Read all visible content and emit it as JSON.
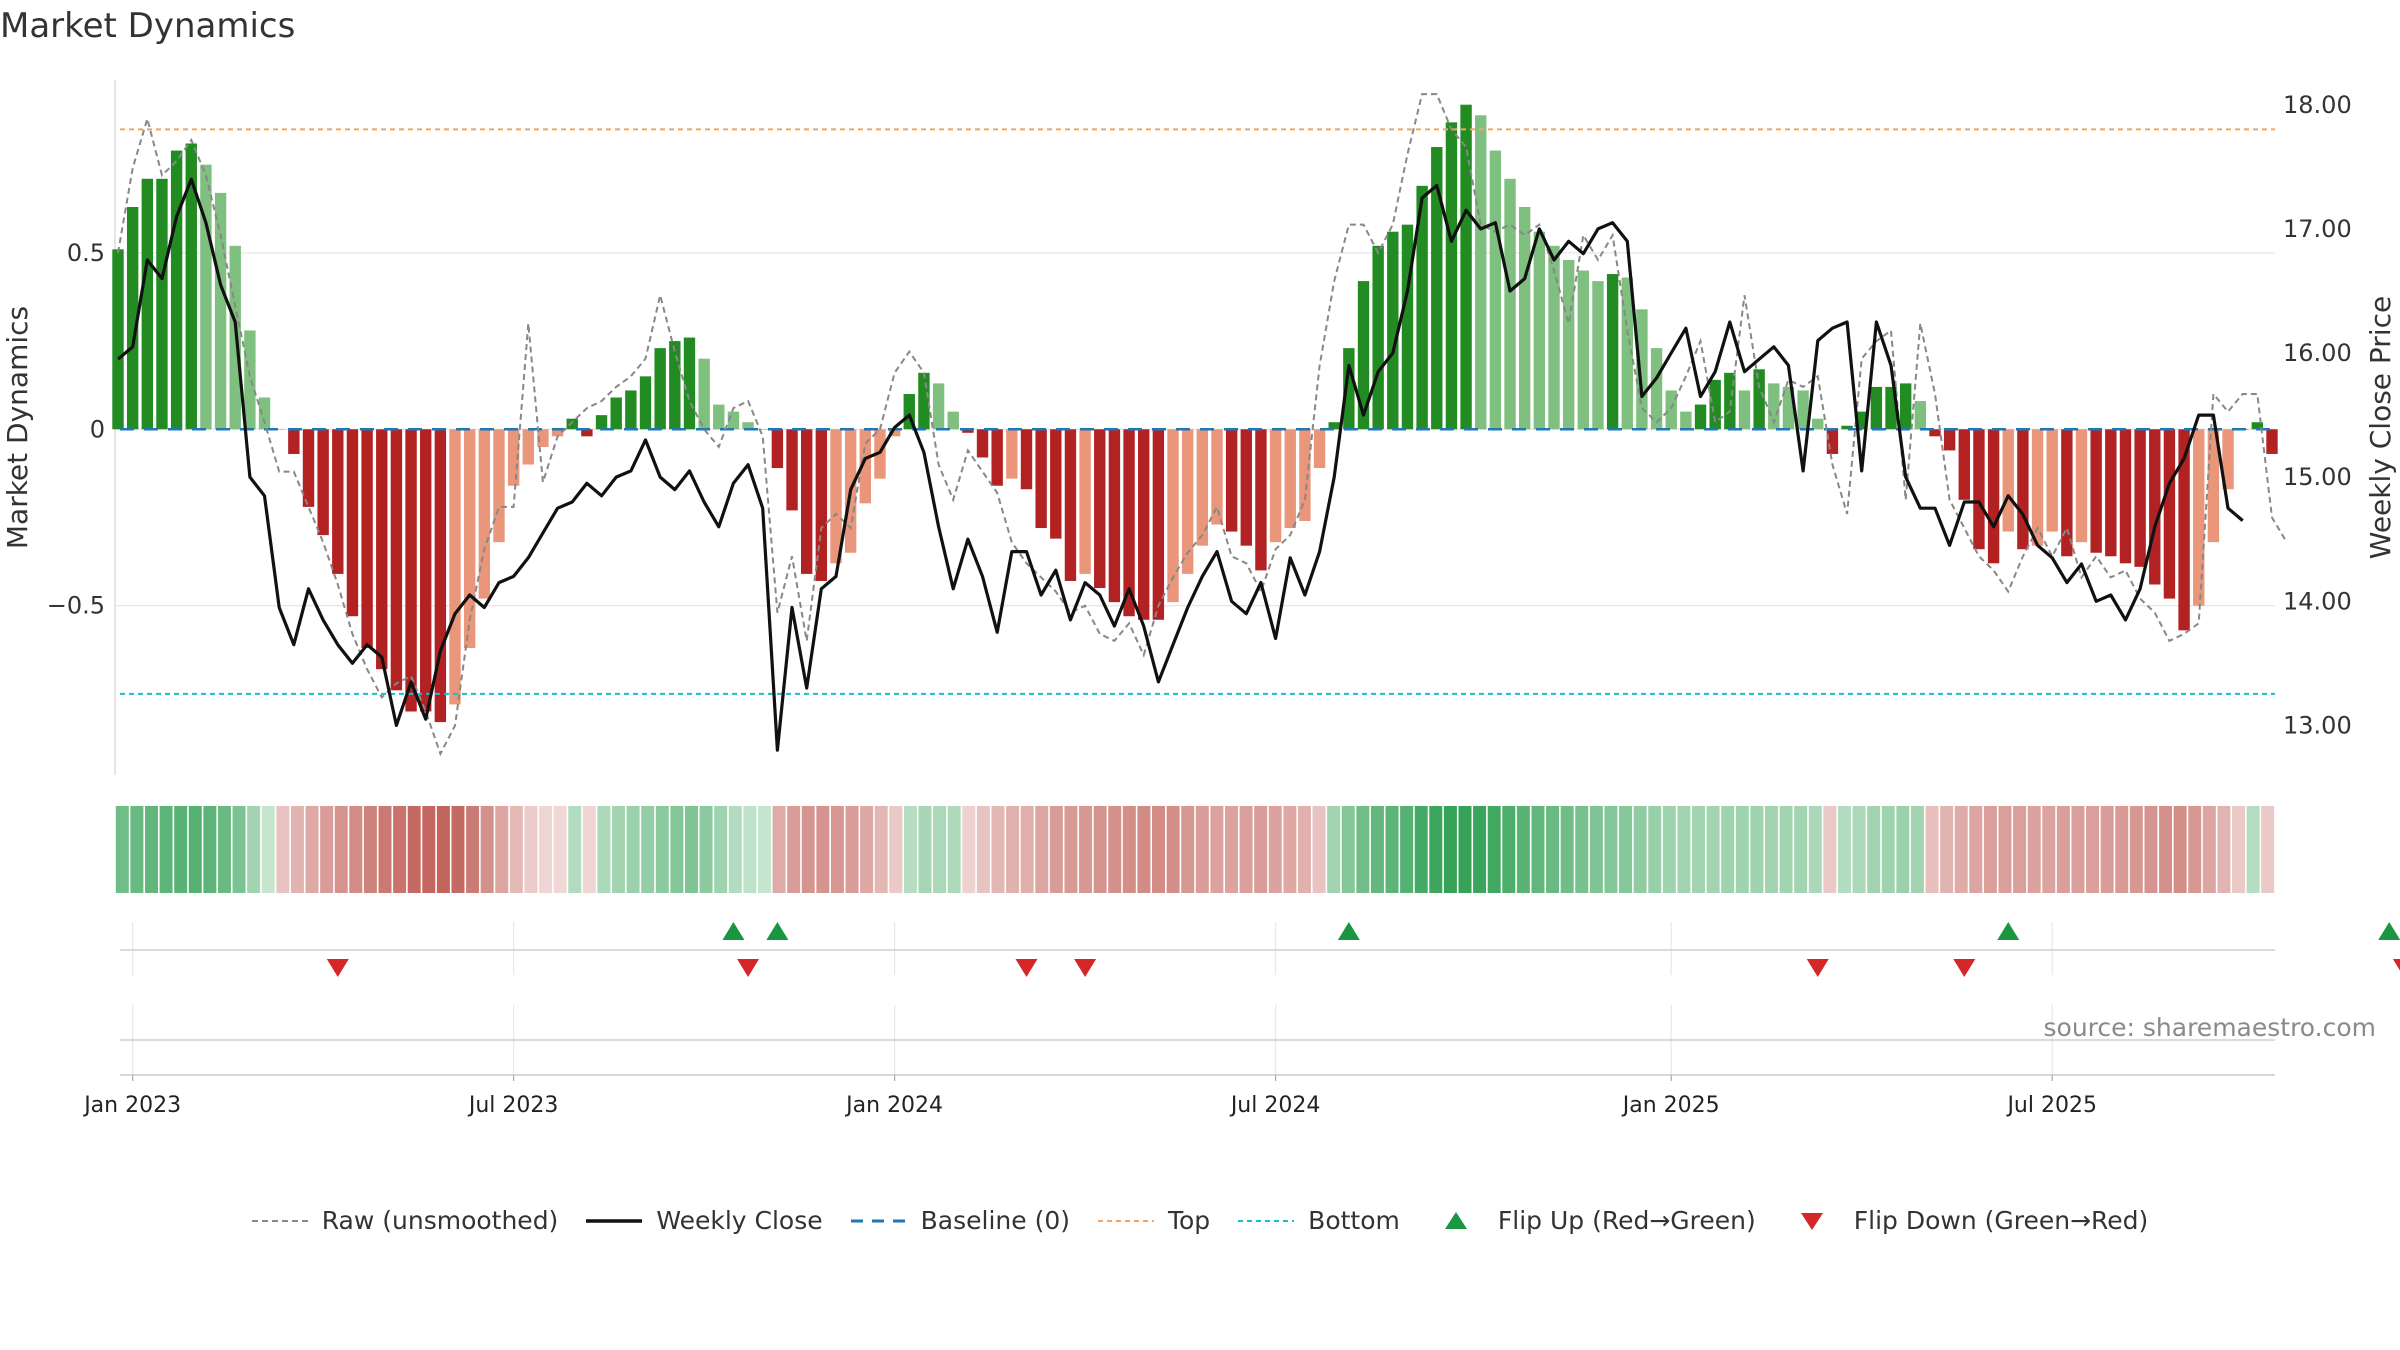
{
  "title": "Market Dynamics",
  "source_label": "source: sharemaestro.com",
  "chart_data": {
    "type": "bar",
    "x_start": "2022-12-26",
    "x_step_days": 7,
    "x_ticks": [
      "2023-01-02",
      "2023-07-03",
      "2024-01-01",
      "2024-07-01",
      "2025-01-06",
      "2025-07-07"
    ],
    "x_tick_labels": [
      "Jan 2023",
      "Jul 2023",
      "Jan 2024",
      "Jul 2024",
      "Jan 2025",
      "Jul 2025"
    ],
    "left_axis": {
      "label": "Market Dynamics",
      "ylim": [
        -0.98,
        0.99
      ],
      "ticks": [
        -0.5,
        0,
        0.5
      ],
      "tick_labels": [
        "−0.5",
        "0",
        "0.5"
      ]
    },
    "right_axis": {
      "label": "Weekly Close Price",
      "ylim": [
        12.6,
        18.2
      ],
      "ticks": [
        13,
        14,
        15,
        16,
        17,
        18
      ],
      "tick_labels": [
        "13.00",
        "14.00",
        "15.00",
        "16.00",
        "17.00",
        "18.00"
      ]
    },
    "top_level": 0.85,
    "bottom_level": -0.75,
    "baseline": 0,
    "colors": {
      "strong_up": "#228b22",
      "weak_up": "#7fbf7f",
      "strong_down": "#b22222",
      "weak_down": "#e9967a",
      "top": "#f4a460",
      "bottom": "#17becf",
      "baseline": "#1f77b4",
      "close": "#111111",
      "raw": "#888888",
      "flip_up": "#1a9641",
      "flip_down": "#d62728"
    },
    "series": [
      {
        "name": "Market Dynamics",
        "values": [
          0.51,
          0.63,
          0.71,
          0.71,
          0.79,
          0.81,
          0.75,
          0.67,
          0.52,
          0.28,
          0.09,
          0,
          -0.07,
          -0.22,
          -0.3,
          -0.41,
          -0.53,
          -0.62,
          -0.68,
          -0.74,
          -0.8,
          -0.8,
          -0.83,
          -0.78,
          -0.62,
          -0.48,
          -0.32,
          -0.16,
          -0.1,
          -0.05,
          -0.02,
          0.03,
          -0.02,
          0.04,
          0.09,
          0.11,
          0.15,
          0.23,
          0.25,
          0.26,
          0.2,
          0.07,
          0.05,
          0.02,
          0,
          -0.11,
          -0.23,
          -0.41,
          -0.43,
          -0.38,
          -0.35,
          -0.21,
          -0.14,
          -0.02,
          0.1,
          0.16,
          0.13,
          0.05,
          -0.01,
          -0.08,
          -0.16,
          -0.14,
          -0.17,
          -0.28,
          -0.31,
          -0.43,
          -0.41,
          -0.45,
          -0.49,
          -0.53,
          -0.54,
          -0.54,
          -0.49,
          -0.41,
          -0.33,
          -0.27,
          -0.29,
          -0.33,
          -0.4,
          -0.32,
          -0.28,
          -0.26,
          -0.11,
          0.02,
          0.23,
          0.42,
          0.52,
          0.56,
          0.58,
          0.69,
          0.8,
          0.87,
          0.92,
          0.89,
          0.79,
          0.71,
          0.63,
          0.56,
          0.52,
          0.48,
          0.45,
          0.42,
          0.44,
          0.43,
          0.34,
          0.23,
          0.11,
          0.05,
          0.07,
          0.14,
          0.16,
          0.11,
          0.17,
          0.13,
          0.12,
          0.11,
          0.03,
          -0.07,
          0.01,
          0.05,
          0.12,
          0.12,
          0.13,
          0.08,
          -0.02,
          -0.06,
          -0.2,
          -0.34,
          -0.38,
          -0.29,
          -0.34,
          -0.33,
          -0.29,
          -0.36,
          -0.32,
          -0.35,
          -0.36,
          -0.38,
          -0.39,
          -0.44,
          -0.48,
          -0.57,
          -0.5,
          -0.32,
          -0.17,
          0,
          0.02,
          -0.07
        ]
      },
      {
        "name": "Raw (unsmoothed)",
        "values": [
          0.5,
          0.74,
          0.88,
          0.72,
          0.76,
          0.82,
          0.72,
          0.55,
          0.35,
          0.15,
          0.02,
          -0.12,
          -0.12,
          -0.22,
          -0.32,
          -0.44,
          -0.58,
          -0.68,
          -0.76,
          -0.72,
          -0.7,
          -0.8,
          -0.92,
          -0.84,
          -0.54,
          -0.34,
          -0.22,
          -0.22,
          0.3,
          -0.15,
          -0.02,
          0.02,
          0.06,
          0.08,
          0.12,
          0.15,
          0.2,
          0.38,
          0.22,
          0.08,
          0,
          -0.05,
          0.06,
          0.08,
          -0.02,
          -0.52,
          -0.36,
          -0.6,
          -0.28,
          -0.24,
          -0.28,
          -0.04,
          0,
          0.16,
          0.22,
          0.16,
          -0.1,
          -0.2,
          -0.06,
          -0.12,
          -0.18,
          -0.32,
          -0.38,
          -0.42,
          -0.46,
          -0.52,
          -0.5,
          -0.58,
          -0.6,
          -0.55,
          -0.64,
          -0.5,
          -0.42,
          -0.35,
          -0.3,
          -0.22,
          -0.36,
          -0.38,
          -0.46,
          -0.34,
          -0.3,
          -0.2,
          0.18,
          0.42,
          0.58,
          0.58,
          0.5,
          0.58,
          0.78,
          0.95,
          0.95,
          0.85,
          0.8,
          0.58,
          0.56,
          0.58,
          0.55,
          0.58,
          0.45,
          0.3,
          0.55,
          0.48,
          0.55,
          0.28,
          0.06,
          0.02,
          0.06,
          0.15,
          0.25,
          0.02,
          0.05,
          0.38,
          0.12,
          0.02,
          0.14,
          0.12,
          0.15,
          -0.1,
          -0.24,
          0.2,
          0.25,
          0.28,
          -0.2,
          0.3,
          0.1,
          -0.2,
          -0.28,
          -0.36,
          -0.4,
          -0.46,
          -0.36,
          -0.28,
          -0.36,
          -0.28,
          -0.42,
          -0.36,
          -0.42,
          -0.4,
          -0.48,
          -0.52,
          -0.6,
          -0.58,
          -0.55,
          0.1,
          0.05,
          0.1,
          0.1,
          -0.25,
          -0.32
        ]
      },
      {
        "name": "Weekly Close",
        "values": [
          15.95,
          16.05,
          16.75,
          16.6,
          17.1,
          17.4,
          17.05,
          16.55,
          16.25,
          15.0,
          14.85,
          13.95,
          13.65,
          14.1,
          13.85,
          13.65,
          13.5,
          13.65,
          13.55,
          13.0,
          13.35,
          13.05,
          13.6,
          13.9,
          14.05,
          13.95,
          14.15,
          14.2,
          14.35,
          14.55,
          14.75,
          14.8,
          14.95,
          14.85,
          15.0,
          15.05,
          15.3,
          15.0,
          14.9,
          15.05,
          14.8,
          14.6,
          14.95,
          15.1,
          14.75,
          12.8,
          13.95,
          13.3,
          14.1,
          14.2,
          14.9,
          15.15,
          15.2,
          15.4,
          15.5,
          15.2,
          14.6,
          14.1,
          14.5,
          14.2,
          13.75,
          14.4,
          14.4,
          14.05,
          14.25,
          13.85,
          14.15,
          14.05,
          13.8,
          14.1,
          13.8,
          13.35,
          13.65,
          13.95,
          14.2,
          14.4,
          14.0,
          13.9,
          14.15,
          13.7,
          14.35,
          14.05,
          14.4,
          15.0,
          15.9,
          15.5,
          15.85,
          16.0,
          16.5,
          17.25,
          17.35,
          16.9,
          17.15,
          17.0,
          17.05,
          16.5,
          16.6,
          17.0,
          16.75,
          16.9,
          16.8,
          17.0,
          17.05,
          16.9,
          15.65,
          15.8,
          16.0,
          16.2,
          15.65,
          15.85,
          16.25,
          15.85,
          15.95,
          16.05,
          15.9,
          15.05,
          16.1,
          16.2,
          16.25,
          15.05,
          16.25,
          15.9,
          15.0,
          14.75,
          14.75,
          14.45,
          14.8,
          14.8,
          14.6,
          14.85,
          14.7,
          14.45,
          14.35,
          14.15,
          14.3,
          14.0,
          14.05,
          13.85,
          14.1,
          14.6,
          14.95,
          15.15,
          15.5,
          15.5,
          14.75,
          14.65
        ]
      }
    ],
    "strip": {
      "values": [
        0.56,
        0.6,
        0.64,
        0.66,
        0.68,
        0.7,
        0.66,
        0.6,
        0.5,
        0.3,
        0.12,
        -0.2,
        -0.3,
        -0.38,
        -0.46,
        -0.52,
        -0.58,
        -0.64,
        -0.7,
        -0.74,
        -0.8,
        -0.82,
        -0.84,
        -0.8,
        -0.68,
        -0.54,
        -0.4,
        -0.26,
        -0.14,
        -0.08,
        -0.06,
        0.22,
        -0.08,
        0.26,
        0.3,
        0.34,
        0.38,
        0.42,
        0.46,
        0.48,
        0.42,
        0.32,
        0.22,
        0.16,
        0.12,
        -0.36,
        -0.46,
        -0.52,
        -0.52,
        -0.5,
        -0.46,
        -0.38,
        -0.28,
        -0.16,
        0.2,
        0.28,
        0.26,
        0.24,
        -0.1,
        -0.2,
        -0.28,
        -0.32,
        -0.34,
        -0.4,
        -0.46,
        -0.48,
        -0.5,
        -0.52,
        -0.54,
        -0.56,
        -0.58,
        -0.58,
        -0.56,
        -0.5,
        -0.46,
        -0.42,
        -0.42,
        -0.44,
        -0.46,
        -0.42,
        -0.38,
        -0.32,
        -0.2,
        0.3,
        0.46,
        0.56,
        0.62,
        0.66,
        0.7,
        0.78,
        0.82,
        0.86,
        0.86,
        0.84,
        0.8,
        0.74,
        0.68,
        0.64,
        0.6,
        0.56,
        0.52,
        0.48,
        0.46,
        0.44,
        0.4,
        0.36,
        0.32,
        0.3,
        0.3,
        0.3,
        0.32,
        0.32,
        0.32,
        0.3,
        0.3,
        0.3,
        0.26,
        -0.16,
        0.22,
        0.26,
        0.3,
        0.32,
        0.34,
        0.3,
        -0.22,
        -0.3,
        -0.36,
        -0.4,
        -0.44,
        -0.44,
        -0.44,
        -0.42,
        -0.42,
        -0.44,
        -0.44,
        -0.44,
        -0.46,
        -0.48,
        -0.5,
        -0.52,
        -0.54,
        -0.56,
        -0.5,
        -0.4,
        -0.3,
        -0.16,
        0.2,
        -0.16
      ]
    },
    "flip_up_weeks": [
      42,
      45,
      84,
      129,
      155
    ],
    "flip_down_weeks": [
      15,
      43,
      62,
      66,
      116,
      126,
      156
    ],
    "legend": [
      {
        "label": "Raw (unsmoothed)",
        "style": "raw"
      },
      {
        "label": "Weekly Close",
        "style": "close"
      },
      {
        "label": "Baseline (0)",
        "style": "baseline"
      },
      {
        "label": "Top",
        "style": "top"
      },
      {
        "label": "Bottom",
        "style": "bottom"
      },
      {
        "label": "Flip Up (Red→Green)",
        "style": "flip_up"
      },
      {
        "label": "Flip Down (Green→Red)",
        "style": "flip_down"
      }
    ],
    "legend_placement": "bottom",
    "grid": true
  }
}
